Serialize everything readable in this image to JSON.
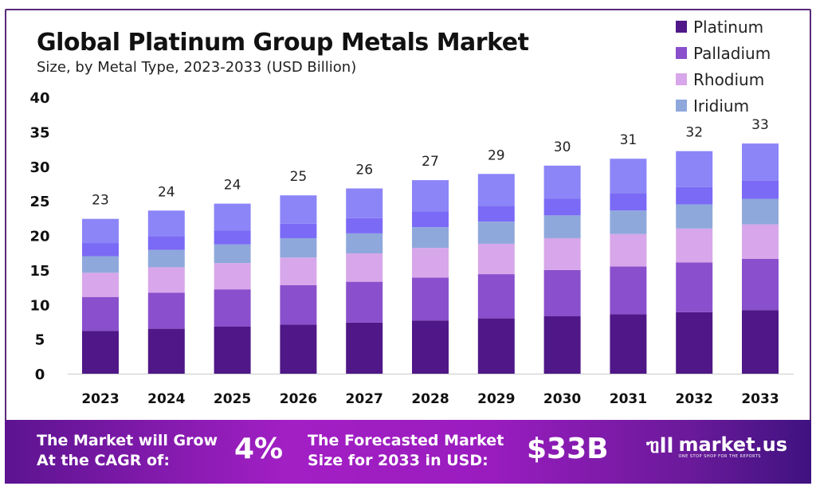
{
  "chart_data": {
    "type": "bar",
    "stacked": true,
    "title": "Global Platinum Group Metals Market",
    "subtitle": "Size, by  Metal Type, 2023-2033 (USD Billion)",
    "xlabel": "",
    "ylabel": "",
    "ylim": [
      0,
      40
    ],
    "yticks": [
      "0",
      "5",
      "10",
      "15",
      "20",
      "25",
      "30",
      "35",
      "40"
    ],
    "grid": false,
    "legend_position": "top-right",
    "categories": [
      "2023",
      "2024",
      "2025",
      "2026",
      "2027",
      "2028",
      "2029",
      "2030",
      "2031",
      "2032",
      "2033"
    ],
    "totals_labels": [
      "23",
      "24",
      "24",
      "25",
      "26",
      "27",
      "29",
      "30",
      "31",
      "32",
      "33"
    ],
    "series": [
      {
        "name": "Platinum",
        "color": "#4f1787",
        "values": [
          6.2,
          6.5,
          6.8,
          7.1,
          7.4,
          7.7,
          8.0,
          8.3,
          8.6,
          8.9,
          9.2
        ]
      },
      {
        "name": "Palladium",
        "color": "#8a4fcc",
        "values": [
          4.9,
          5.2,
          5.4,
          5.7,
          5.9,
          6.2,
          6.4,
          6.7,
          6.9,
          7.2,
          7.4
        ]
      },
      {
        "name": "Rhodium",
        "color": "#d8a6ea",
        "values": [
          3.5,
          3.7,
          3.8,
          4.0,
          4.1,
          4.3,
          4.4,
          4.6,
          4.7,
          4.9,
          5.0
        ]
      },
      {
        "name": "Iridium",
        "color": "#8fa8dc",
        "values": [
          2.4,
          2.5,
          2.7,
          2.8,
          2.9,
          3.0,
          3.2,
          3.3,
          3.4,
          3.5,
          3.7
        ]
      },
      {
        "color": "#7b6af5",
        "values": [
          1.9,
          2.0,
          2.0,
          2.1,
          2.2,
          2.3,
          2.3,
          2.4,
          2.5,
          2.5,
          2.6
        ]
      },
      {
        "color": "#8c85f7",
        "values": [
          3.5,
          3.7,
          3.9,
          4.1,
          4.3,
          4.5,
          4.6,
          4.8,
          5.0,
          5.2,
          5.4
        ]
      }
    ]
  },
  "banner": {
    "cagr_text_1": "The Market will Grow",
    "cagr_text_2": "At the CAGR of:",
    "cagr_value": "4%",
    "forecast_text_1": "The Forecasted Market",
    "forecast_text_2": "Size for 2033 in USD:",
    "forecast_value": "$33B",
    "logo_text": "market.us",
    "logo_tagline": "ONE STOP SHOP FOR THE REPORTS"
  }
}
